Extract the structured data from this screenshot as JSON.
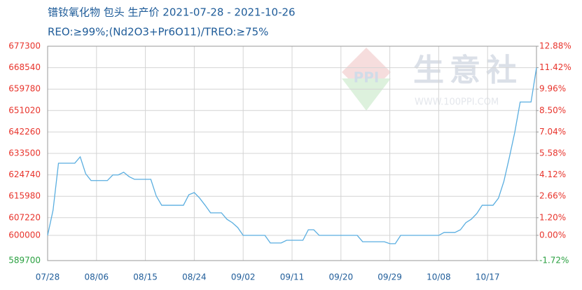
{
  "chart_data": {
    "type": "line",
    "title": "镨钕氧化物 包头 生产价 2021-07-28 - 2021-10-26",
    "subtitle": "REO:≥99%;(Nd2O3+Pr6O11)/TREO:≥75%",
    "watermark": {
      "logo": "PPI",
      "text": "生意社",
      "url": "WWW.100PPI.COM"
    },
    "categories": [
      "07/28",
      null,
      null,
      null,
      null,
      null,
      null,
      null,
      null,
      "08/06",
      null,
      null,
      null,
      null,
      null,
      null,
      null,
      null,
      "08/15",
      null,
      null,
      null,
      null,
      null,
      null,
      null,
      null,
      "08/24",
      null,
      null,
      null,
      null,
      null,
      null,
      null,
      null,
      "09/02",
      null,
      null,
      null,
      null,
      null,
      null,
      null,
      null,
      "09/11",
      null,
      null,
      null,
      null,
      null,
      null,
      null,
      null,
      "09/20",
      null,
      null,
      null,
      null,
      null,
      null,
      null,
      null,
      "09/29",
      null,
      null,
      null,
      null,
      null,
      null,
      null,
      null,
      "10/08",
      null,
      null,
      null,
      null,
      null,
      null,
      null,
      null,
      "10/17",
      null,
      null,
      null,
      null,
      null,
      null,
      null,
      null,
      null
    ],
    "series": [
      {
        "color": "#5aaee0",
        "values": [
          600000,
          610300,
          629500,
          629500,
          629500,
          629500,
          632100,
          625200,
          622400,
          622400,
          622400,
          622400,
          624700,
          624700,
          625800,
          624000,
          622900,
          622900,
          622900,
          622900,
          616100,
          612300,
          612300,
          612300,
          612300,
          612300,
          616600,
          617500,
          615200,
          612300,
          609200,
          609200,
          609200,
          606600,
          605200,
          603200,
          600000,
          600000,
          600000,
          600000,
          600000,
          596900,
          596900,
          596900,
          598000,
          598000,
          598000,
          598000,
          602300,
          602300,
          600000,
          600000,
          600000,
          600000,
          600000,
          600000,
          600000,
          600000,
          597400,
          597400,
          597400,
          597400,
          597400,
          596600,
          596600,
          600000,
          600000,
          600000,
          600000,
          600000,
          600000,
          600000,
          600000,
          601200,
          601200,
          601200,
          602300,
          605200,
          606600,
          608900,
          612300,
          612300,
          612300,
          615200,
          622100,
          631800,
          642100,
          654500,
          654500,
          654500,
          668500
        ]
      }
    ],
    "ylim": [
      589700,
      677300
    ],
    "yticks": [
      677300,
      668540,
      659780,
      651020,
      642260,
      633500,
      624740,
      615980,
      607220,
      600000,
      589700
    ],
    "y2lim": [
      -1.72,
      12.88
    ],
    "y2ticks": [
      {
        "value": 12.88,
        "label": "12.88%"
      },
      {
        "value": 11.42,
        "label": "11.42%"
      },
      {
        "value": 9.96,
        "label": "9.96%"
      },
      {
        "value": 8.5,
        "label": "8.50%"
      },
      {
        "value": 7.04,
        "label": "7.04%"
      },
      {
        "value": 5.58,
        "label": "5.58%"
      },
      {
        "value": 4.12,
        "label": "4.12%"
      },
      {
        "value": 2.66,
        "label": "2.66%"
      },
      {
        "value": 1.2,
        "label": "1.20%"
      },
      {
        "value": 0,
        "label": "0.00%"
      },
      {
        "value": -1.72,
        "label": "-1.72%"
      }
    ],
    "grid": true,
    "tick_color": "#e8342c",
    "negative_tick_color": "#2aa040",
    "x_tick_color": "#1f5c99"
  }
}
